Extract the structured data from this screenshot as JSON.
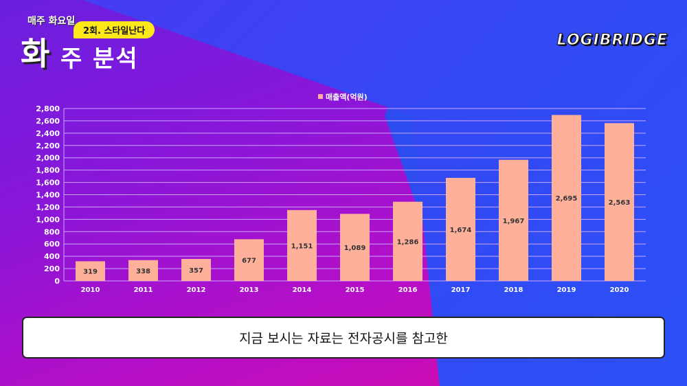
{
  "header": {
    "weekly": "매주 화요일",
    "episode": "2회. 스타일난다",
    "title_big": "화",
    "title_rest": "주 분석",
    "logo": "LOGIBRIDGE"
  },
  "caption": "지금 보시는 자료는 전자공시를 참고한",
  "colors": {
    "bar": "#ffb09a",
    "grid": "#c9a8ff"
  },
  "chart_data": {
    "type": "bar",
    "title": "",
    "legend": [
      "매출액(억원)"
    ],
    "legend_position": "top",
    "categories": [
      "2010",
      "2011",
      "2012",
      "2013",
      "2014",
      "2015",
      "2016",
      "2017",
      "2018",
      "2019",
      "2020"
    ],
    "values": [
      319,
      338,
      357,
      677,
      1151,
      1089,
      1286,
      1674,
      1967,
      2695,
      2563
    ],
    "value_labels": [
      "319",
      "338",
      "357",
      "677",
      "1,151",
      "1,089",
      "1,286",
      "1,674",
      "1,967",
      "2,695",
      "2,563"
    ],
    "yticks": [
      "0",
      "200",
      "400",
      "600",
      "800",
      "1,000",
      "1,200",
      "1,400",
      "1,600",
      "1,800",
      "2,000",
      "2,200",
      "2,400",
      "2,600",
      "2,800"
    ],
    "ylim": [
      0,
      2800
    ],
    "grid": true
  }
}
